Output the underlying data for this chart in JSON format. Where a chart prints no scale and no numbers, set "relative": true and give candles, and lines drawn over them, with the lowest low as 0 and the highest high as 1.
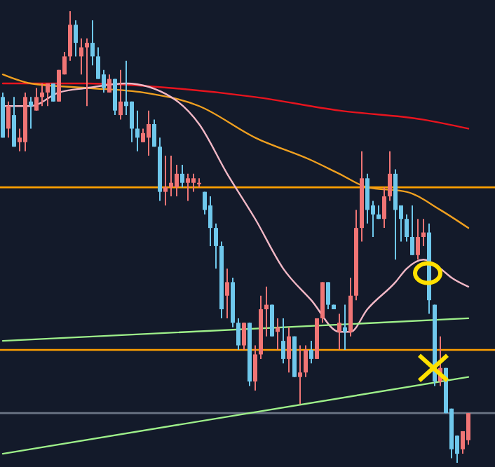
{
  "chart_data": {
    "type": "candlestick",
    "relative": true,
    "categories": [
      null,
      null,
      null,
      null,
      null,
      null,
      null,
      null,
      null,
      null,
      null,
      null,
      null,
      null,
      null,
      null,
      null,
      null,
      null,
      null,
      null,
      null,
      null,
      null,
      null,
      null,
      null,
      null,
      null,
      null,
      null,
      null,
      null,
      null,
      null,
      null,
      null,
      null,
      null,
      null,
      null,
      null,
      null,
      null,
      null,
      null,
      null,
      null,
      null,
      null,
      null,
      null,
      null,
      null,
      null,
      null,
      null,
      null,
      null,
      null,
      null,
      null,
      null,
      null,
      null,
      null,
      null,
      null,
      null,
      null,
      null,
      null,
      null,
      null,
      null,
      null,
      null,
      null,
      null,
      null,
      null,
      null,
      null,
      null
    ],
    "ohlc": [
      [
        0.81,
        0.82,
        0.72,
        0.72
      ],
      [
        0.74,
        0.8,
        0.72,
        0.79
      ],
      [
        0.77,
        0.81,
        0.7,
        0.7
      ],
      [
        0.71,
        0.74,
        0.69,
        0.72
      ],
      [
        0.71,
        0.82,
        0.69,
        0.81
      ],
      [
        0.8,
        0.81,
        0.74,
        0.79
      ],
      [
        0.78,
        0.83,
        0.78,
        0.81
      ],
      [
        0.81,
        0.84,
        0.79,
        0.82
      ],
      [
        0.82,
        0.84,
        0.79,
        0.84
      ],
      [
        0.84,
        0.84,
        0.8,
        0.8
      ],
      [
        0.8,
        0.87,
        0.8,
        0.87
      ],
      [
        0.86,
        0.91,
        0.86,
        0.9
      ],
      [
        0.9,
        1,
        0.89,
        0.97
      ],
      [
        0.97,
        0.98,
        0.9,
        0.93
      ],
      [
        0.9,
        0.94,
        0.86,
        0.92
      ],
      [
        0.92,
        0.94,
        0.79,
        0.93
      ],
      [
        0.93,
        0.98,
        0.88,
        0.9
      ],
      [
        0.9,
        0.92,
        0.85,
        0.85
      ],
      [
        0.86,
        0.87,
        0.82,
        0.83
      ],
      [
        0.82,
        0.86,
        0.82,
        0.85
      ],
      [
        0.85,
        0.85,
        0.77,
        0.78
      ],
      [
        0.77,
        0.87,
        0.76,
        0.8
      ],
      [
        0.8,
        0.89,
        0.77,
        0.79
      ],
      [
        0.8,
        0.8,
        0.71,
        0.74
      ],
      [
        0.74,
        0.78,
        0.69,
        0.72
      ],
      [
        0.71,
        0.74,
        0.71,
        0.73
      ],
      [
        0.72,
        0.78,
        0.68,
        0.75
      ],
      [
        0.75,
        0.76,
        0.7,
        0.7
      ],
      [
        0.7,
        0.72,
        0.58,
        0.6
      ],
      [
        0.6,
        0.68,
        0.57,
        0.61
      ],
      [
        0.61,
        0.68,
        0.59,
        0.62
      ],
      [
        0.61,
        0.66,
        0.59,
        0.64
      ],
      [
        0.64,
        0.66,
        0.61,
        0.62
      ],
      [
        0.62,
        0.64,
        0.58,
        0.63
      ],
      [
        0.62,
        0.64,
        0.6,
        0.63
      ],
      [
        0.62,
        0.63,
        0.61,
        0.62
      ],
      [
        0.6,
        0.6,
        0.55,
        0.56
      ],
      [
        0.57,
        0.59,
        0.48,
        0.52
      ],
      [
        0.52,
        0.53,
        0.43,
        0.48
      ],
      [
        0.48,
        0.49,
        0.32,
        0.34
      ],
      [
        0.37,
        0.43,
        0.32,
        0.4
      ],
      [
        0.4,
        0.41,
        0.3,
        0.31
      ],
      [
        0.31,
        0.32,
        0.25,
        0.26
      ],
      [
        0.26,
        0.31,
        0.25,
        0.31
      ],
      [
        0.31,
        0.31,
        0.17,
        0.18
      ],
      [
        0.18,
        0.26,
        0.16,
        0.24
      ],
      [
        0.24,
        0.37,
        0.23,
        0.34
      ],
      [
        0.34,
        0.39,
        0.28,
        0.35
      ],
      [
        0.35,
        0.35,
        0.28,
        0.28
      ],
      [
        0.29,
        0.32,
        0.25,
        0.3
      ],
      [
        0.27,
        0.32,
        0.22,
        0.23
      ],
      [
        0.23,
        0.3,
        0.2,
        0.28
      ],
      [
        0.28,
        0.28,
        0.19,
        0.19
      ],
      [
        0.19,
        0.26,
        0.13,
        0.2
      ],
      [
        0.2,
        0.26,
        0.19,
        0.25
      ],
      [
        0.25,
        0.27,
        0.22,
        0.23
      ],
      [
        0.23,
        0.32,
        0.23,
        0.32
      ],
      [
        0.32,
        0.4,
        0.31,
        0.4
      ],
      [
        0.4,
        0.4,
        0.34,
        0.35
      ],
      [
        0.35,
        0.35,
        0.34,
        0.34
      ],
      [
        0.29,
        0.33,
        0.25,
        0.31
      ],
      [
        0.3,
        0.35,
        0.25,
        0.29
      ],
      [
        0.29,
        0.41,
        0.28,
        0.37
      ],
      [
        0.37,
        0.56,
        0.36,
        0.52
      ],
      [
        0.52,
        0.69,
        0.49,
        0.63
      ],
      [
        0.63,
        0.64,
        0.53,
        0.56
      ],
      [
        0.57,
        0.58,
        0.5,
        0.55
      ],
      [
        0.55,
        0.57,
        0.54,
        0.54
      ],
      [
        0.54,
        0.61,
        0.52,
        0.59
      ],
      [
        0.59,
        0.69,
        0.58,
        0.64
      ],
      [
        0.64,
        0.65,
        0.45,
        0.56
      ],
      [
        0.57,
        0.57,
        0.49,
        0.54
      ],
      [
        0.54,
        0.55,
        0.49,
        0.5
      ],
      [
        0.5,
        0.57,
        0.46,
        0.46
      ],
      [
        0.46,
        0.54,
        0.45,
        0.5
      ],
      [
        0.5,
        0.54,
        0.48,
        0.51
      ],
      [
        0.51,
        0.53,
        0.33,
        0.36
      ],
      [
        0.35,
        0.35,
        0.17,
        0.18
      ],
      [
        0.18,
        0.28,
        0.17,
        0.21
      ],
      [
        0.21,
        0.21,
        0.11,
        0.11
      ],
      [
        0.12,
        0.12,
        0.01,
        0.03
      ],
      [
        0.06,
        0.06,
        0,
        0.02
      ],
      [
        0.03,
        0.07,
        0.02,
        0.07
      ],
      [
        0.05,
        0.11,
        0.04,
        0.11
      ]
    ],
    "colors": [
      "#6fc8ec",
      "#f07575",
      "#6fc8ec",
      "#f07575",
      "#f07575",
      "#6fc8ec",
      "#f07575",
      "#f07575",
      "#f07575",
      "#6fc8ec",
      "#f07575",
      "#f07575",
      "#f07575",
      "#6fc8ec",
      "#f07575",
      "#f07575",
      "#6fc8ec",
      "#6fc8ec",
      "#6fc8ec",
      "#f07575",
      "#6fc8ec",
      "#f07575",
      "#6fc8ec",
      "#6fc8ec",
      "#6fc8ec",
      "#f07575",
      "#f07575",
      "#6fc8ec",
      "#6fc8ec",
      "#f07575",
      "#f07575",
      "#f07575",
      "#6fc8ec",
      "#f07575",
      "#f07575",
      "#f07575",
      "#6fc8ec",
      "#6fc8ec",
      "#6fc8ec",
      "#6fc8ec",
      "#f07575",
      "#6fc8ec",
      "#6fc8ec",
      "#f07575",
      "#6fc8ec",
      "#f07575",
      "#f07575",
      "#f07575",
      "#6fc8ec",
      "#f07575",
      "#6fc8ec",
      "#f07575",
      "#6fc8ec",
      "#f07575",
      "#f07575",
      "#6fc8ec",
      "#f07575",
      "#f07575",
      "#6fc8ec",
      "#6fc8ec",
      "#f07575",
      "#6fc8ec",
      "#f07575",
      "#f07575",
      "#f07575",
      "#6fc8ec",
      "#6fc8ec",
      "#6fc8ec",
      "#f07575",
      "#f07575",
      "#6fc8ec",
      "#6fc8ec",
      "#6fc8ec",
      "#6fc8ec",
      "#f07575",
      "#f07575",
      "#6fc8ec",
      "#6fc8ec",
      "#f07575",
      "#6fc8ec",
      "#6fc8ec",
      "#6fc8ec",
      "#f07575",
      "#f07575"
    ],
    "series": [
      {
        "type": "line",
        "color": "#e8141e",
        "values": [
          0.84,
          null,
          null,
          null,
          null,
          null,
          null,
          null,
          null,
          null,
          null,
          null,
          null,
          null,
          null,
          0.84,
          null,
          null,
          null,
          null,
          null,
          null,
          null,
          null,
          null,
          null,
          null,
          null,
          null,
          null,
          0.83,
          null,
          null,
          null,
          null,
          null,
          null,
          null,
          null,
          null,
          null,
          null,
          null,
          null,
          null,
          0.81,
          null,
          null,
          null,
          null,
          null,
          null,
          null,
          null,
          null,
          null,
          null,
          null,
          null,
          null,
          0.78,
          null,
          null,
          null,
          null,
          null,
          null,
          null,
          null,
          null,
          null,
          null,
          null,
          null,
          null,
          0.76,
          null,
          null,
          null,
          null,
          null,
          null,
          null,
          0.74
        ]
      },
      {
        "type": "line",
        "color": "#f0a020",
        "values": [
          0.86,
          null,
          null,
          null,
          null,
          0.84,
          null,
          null,
          null,
          null,
          null,
          null,
          null,
          null,
          null,
          0.83,
          null,
          null,
          null,
          null,
          null,
          null,
          null,
          null,
          null,
          0.82,
          null,
          null,
          null,
          null,
          null,
          null,
          null,
          null,
          null,
          0.79,
          null,
          null,
          null,
          null,
          null,
          null,
          null,
          null,
          null,
          0.72,
          null,
          null,
          null,
          null,
          null,
          null,
          null,
          null,
          null,
          0.67,
          null,
          null,
          null,
          null,
          0.64,
          null,
          null,
          null,
          null,
          0.61,
          null,
          null,
          null,
          null,
          null,
          null,
          0.6,
          null,
          null,
          null,
          null,
          null,
          0.56,
          null,
          null,
          null,
          null,
          0.52
        ]
      },
      {
        "type": "line",
        "color": "#f2b8c6",
        "values": [
          0.79,
          null,
          null,
          null,
          null,
          0.79,
          null,
          null,
          null,
          null,
          0.82,
          null,
          null,
          null,
          null,
          0.83,
          null,
          null,
          null,
          null,
          null,
          null,
          0.84,
          null,
          null,
          null,
          null,
          null,
          null,
          null,
          0.81,
          null,
          null,
          null,
          null,
          0.75,
          null,
          null,
          null,
          null,
          0.64,
          null,
          null,
          null,
          null,
          0.54,
          null,
          null,
          null,
          null,
          0.43,
          null,
          null,
          null,
          null,
          0.36,
          null,
          null,
          null,
          null,
          0.29,
          null,
          0.29,
          null,
          null,
          0.34,
          null,
          null,
          null,
          null,
          0.4,
          null,
          0.43,
          null,
          null,
          0.45,
          null,
          null,
          0.43,
          null,
          0.41,
          null,
          null,
          0.39
        ]
      },
      {
        "type": "line",
        "color": "#9ef08a",
        "values": [
          0.27,
          null,
          null,
          null,
          null,
          null,
          null,
          null,
          null,
          null,
          null,
          null,
          null,
          null,
          null,
          null,
          null,
          null,
          null,
          null,
          null,
          null,
          null,
          null,
          null,
          null,
          null,
          null,
          null,
          null,
          null,
          null,
          null,
          null,
          null,
          null,
          null,
          null,
          null,
          null,
          null,
          null,
          null,
          null,
          null,
          null,
          null,
          null,
          null,
          null,
          null,
          null,
          null,
          null,
          null,
          null,
          null,
          null,
          null,
          null,
          null,
          null,
          null,
          null,
          null,
          null,
          null,
          null,
          null,
          null,
          null,
          null,
          null,
          null,
          null,
          null,
          null,
          null,
          null,
          null,
          null,
          null,
          null,
          0.32
        ]
      },
      {
        "type": "line",
        "color": "#9ef08a",
        "values": [
          0.02,
          null,
          null,
          null,
          null,
          null,
          null,
          null,
          null,
          null,
          null,
          null,
          null,
          null,
          null,
          null,
          null,
          null,
          null,
          null,
          null,
          null,
          null,
          null,
          null,
          null,
          null,
          null,
          null,
          null,
          null,
          null,
          null,
          null,
          null,
          null,
          null,
          null,
          null,
          null,
          null,
          null,
          null,
          null,
          null,
          null,
          null,
          null,
          null,
          null,
          null,
          null,
          null,
          null,
          null,
          null,
          null,
          null,
          null,
          null,
          null,
          null,
          null,
          null,
          null,
          null,
          null,
          null,
          null,
          null,
          null,
          null,
          null,
          null,
          null,
          null,
          null,
          null,
          null,
          null,
          null,
          null,
          null,
          0.19
        ]
      }
    ],
    "ref_lines": [
      {
        "axis": "y",
        "value": 0.61,
        "color": "#ffa000"
      },
      {
        "axis": "y",
        "value": 0.25,
        "color": "#ffa000"
      },
      {
        "axis": "y",
        "value": 0.11,
        "color": "#6b7585"
      }
    ]
  }
}
